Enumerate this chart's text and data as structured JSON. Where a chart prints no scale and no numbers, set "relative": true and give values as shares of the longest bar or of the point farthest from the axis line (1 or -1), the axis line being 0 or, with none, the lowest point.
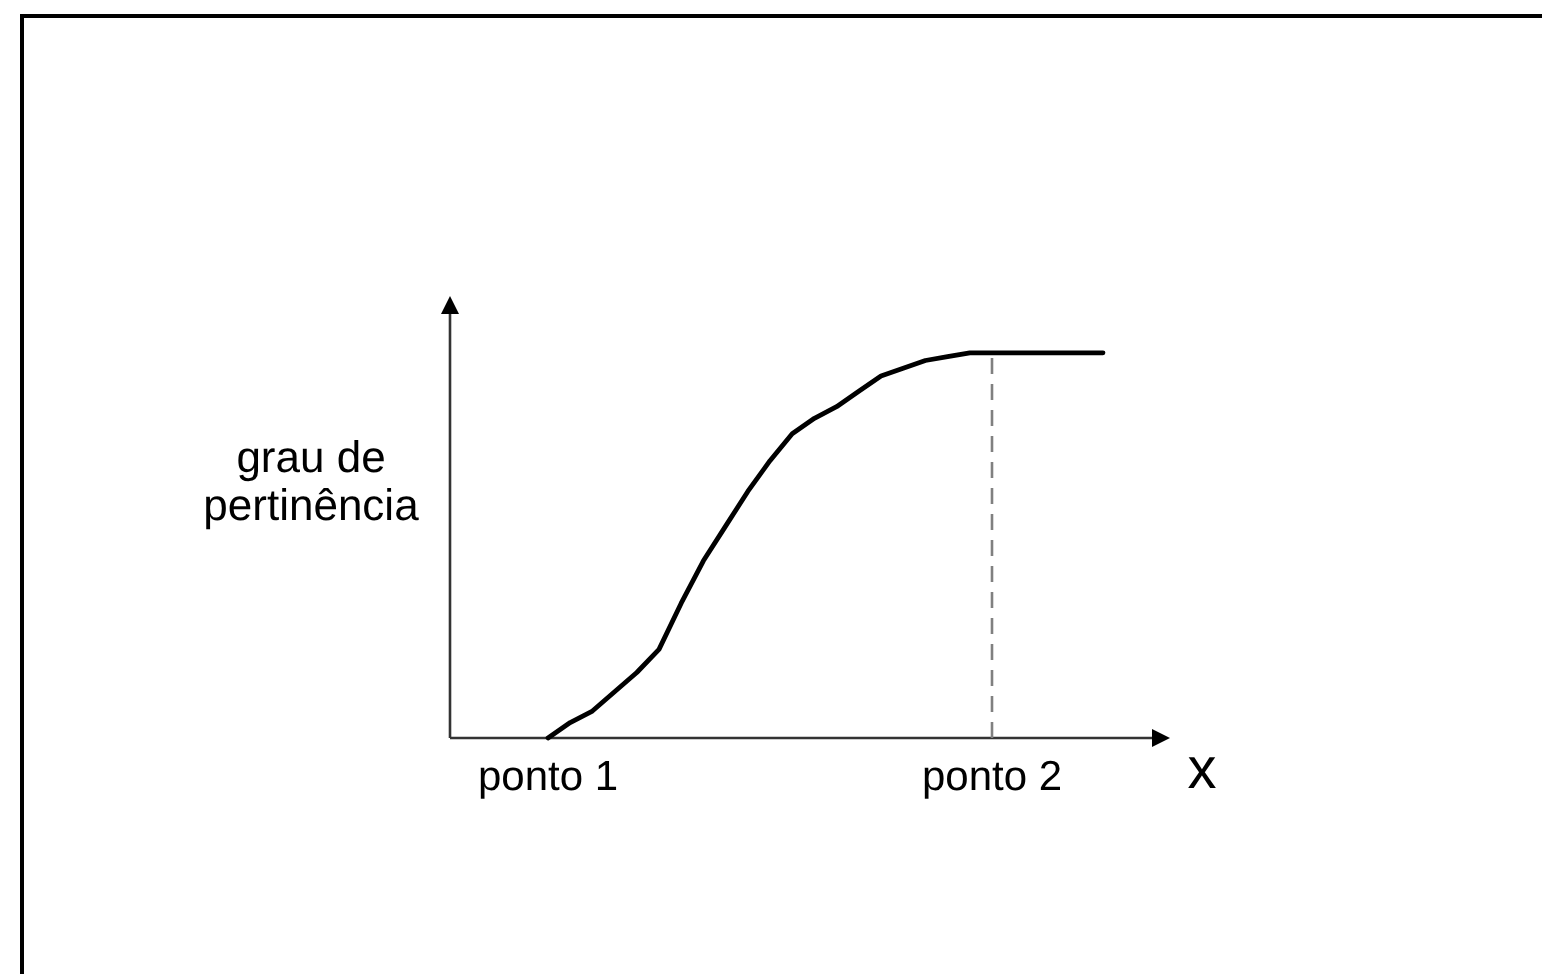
{
  "chart_data": {
    "type": "line",
    "xlabel": "x",
    "ylabel": "grau de\npertinência",
    "relative": true,
    "categories": [
      "ponto 1",
      null,
      null,
      null,
      null,
      null,
      null,
      null,
      null,
      null,
      null,
      null,
      null,
      null,
      null,
      null,
      null,
      null,
      null,
      null,
      "ponto 2",
      null,
      null,
      null,
      null,
      null
    ],
    "series": [
      {
        "color": "#000000",
        "values": [
          0,
          0.04,
          0.07,
          0.12,
          0.17,
          0.23,
          0.35,
          0.46,
          0.55,
          0.64,
          0.72,
          0.79,
          0.83,
          0.86,
          0.9,
          0.94,
          0.96,
          0.98,
          0.99,
          1,
          1,
          1,
          1,
          1,
          1,
          1
        ]
      }
    ],
    "ref_lines": [
      {
        "axis": "x",
        "value": "ponto 2",
        "line_style": "dashed",
        "color": "#808080"
      }
    ]
  }
}
